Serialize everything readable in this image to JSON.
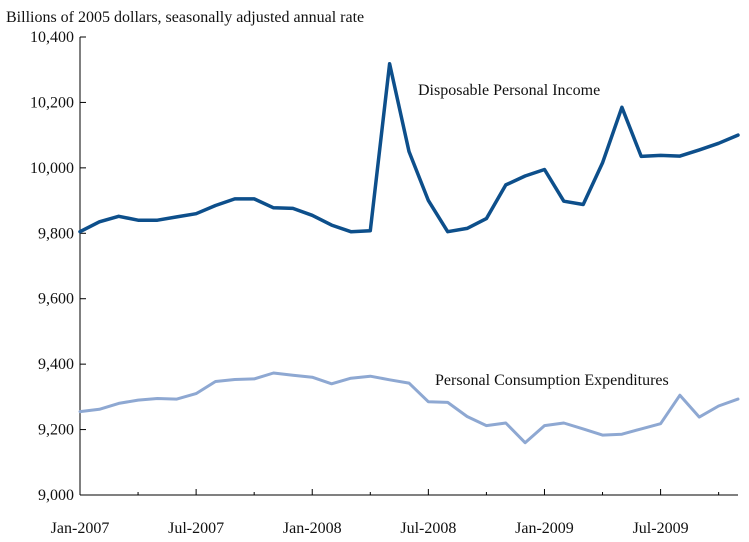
{
  "chart_data": {
    "type": "line",
    "ylabel": "Billions of 2005 dollars, seasonally adjusted annual rate",
    "ylim": [
      9000,
      10400
    ],
    "yticks": [
      9000,
      9200,
      9400,
      9600,
      9800,
      10000,
      10200,
      10400
    ],
    "ytick_labels": [
      "9,000",
      "9,200",
      "9,400",
      "9,600",
      "9,800",
      "10,000",
      "10,200",
      "10,400"
    ],
    "xticks": [
      {
        "index": 0,
        "label": "Jan-2007"
      },
      {
        "index": 6,
        "label": "Jul-2007"
      },
      {
        "index": 12,
        "label": "Jan-2008"
      },
      {
        "index": 18,
        "label": "Jul-2008"
      },
      {
        "index": 24,
        "label": "Jan-2009"
      },
      {
        "index": 30,
        "label": "Jul-2009"
      }
    ],
    "x_count": 35,
    "grid": false,
    "series": [
      {
        "name": "Disposable Personal Income",
        "color": "#0d4f8b",
        "values": [
          9805,
          9835,
          9852,
          9840,
          9840,
          9850,
          9860,
          9885,
          9905,
          9905,
          9878,
          9876,
          9855,
          9825,
          9805,
          9808,
          10318,
          10050,
          9900,
          9805,
          9815,
          9845,
          9948,
          9975,
          9995,
          9898,
          9888,
          10015,
          10185,
          10035,
          10038,
          10036,
          10055,
          10075,
          10100
        ]
      },
      {
        "name": "Personal Consumption Expenditures",
        "color": "#8ea8d2",
        "values": [
          9255,
          9262,
          9280,
          9290,
          9295,
          9293,
          9310,
          9347,
          9353,
          9355,
          9373,
          9366,
          9360,
          9340,
          9357,
          9363,
          9352,
          9342,
          9285,
          9283,
          9240,
          9212,
          9220,
          9160,
          9212,
          9220,
          9202,
          9183,
          9186,
          9202,
          9218,
          9305,
          9238,
          9272,
          9293
        ]
      }
    ]
  }
}
